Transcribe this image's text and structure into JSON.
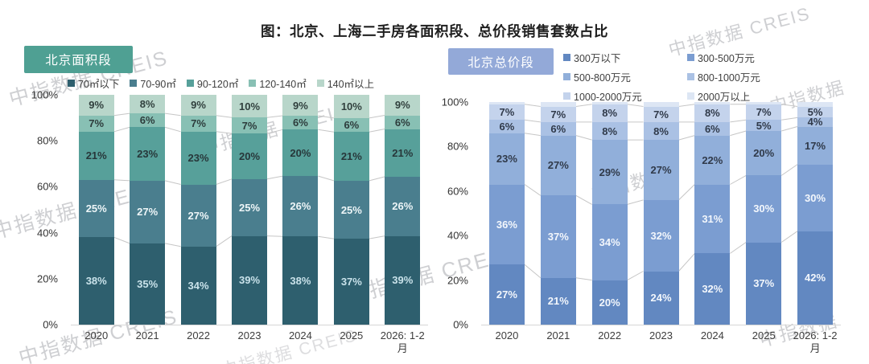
{
  "title": "图：北京、上海二手房各面积段、总价段销售套数占比",
  "watermark_full": "中指数据 CREIS",
  "watermark_short": "中指数据",
  "y_ticks": [
    "100%",
    "80%",
    "60%",
    "40%",
    "20%",
    "0%"
  ],
  "chart_data": [
    {
      "type": "bar",
      "subtype": "stacked-percent-column",
      "badge": "北京面积段",
      "badge_color": "#4fa093",
      "ylabel": "",
      "ylim": [
        0,
        100
      ],
      "grid": false,
      "legend_position": "top",
      "categories": [
        "2020",
        "2021",
        "2022",
        "2023",
        "2024",
        "2025",
        "2026: 1-2\n月"
      ],
      "series": [
        {
          "name": "70㎡以下",
          "color": "#2e5f6e",
          "label_color": "#c9e2ea",
          "labeled": true,
          "values": [
            38,
            35,
            34,
            39,
            38,
            37,
            39
          ]
        },
        {
          "name": "70-90㎡",
          "color": "#4a7e8e",
          "label_color": "#eef6f8",
          "labeled": true,
          "values": [
            25,
            27,
            27,
            25,
            26,
            25,
            26
          ]
        },
        {
          "name": "90-120㎡",
          "color": "#57a09a",
          "label_color": "#27373a",
          "labeled": true,
          "values": [
            21,
            23,
            23,
            20,
            20,
            21,
            21
          ]
        },
        {
          "name": "120-140㎡",
          "color": "#88c0b4",
          "label_color": "#2d3c3c",
          "labeled": true,
          "values": [
            7,
            6,
            7,
            7,
            6,
            6,
            6
          ]
        },
        {
          "name": "140㎡以上",
          "color": "#b8d6ca",
          "label_color": "#31403e",
          "labeled": true,
          "values": [
            9,
            8,
            9,
            10,
            9,
            10,
            9
          ]
        }
      ]
    },
    {
      "type": "bar",
      "subtype": "stacked-percent-column",
      "badge": "北京总价段",
      "badge_color": "#93a9d8",
      "ylabel": "",
      "ylim": [
        0,
        100
      ],
      "grid": false,
      "legend_position": "top",
      "categories": [
        "2020",
        "2021",
        "2022",
        "2023",
        "2024",
        "2025",
        "2026: 1-2\n月"
      ],
      "series": [
        {
          "name": "300万以下",
          "color": "#6288c1",
          "label_color": "#f3f7fc",
          "labeled": true,
          "values": [
            27,
            21,
            20,
            24,
            32,
            37,
            42
          ]
        },
        {
          "name": "300-500万元",
          "color": "#7b9dd1",
          "label_color": "#f3f7fc",
          "labeled": true,
          "values": [
            36,
            37,
            34,
            32,
            31,
            30,
            30
          ]
        },
        {
          "name": "500-800万元",
          "color": "#91afda",
          "label_color": "#303a4a",
          "labeled": true,
          "values": [
            23,
            27,
            29,
            27,
            22,
            20,
            17
          ]
        },
        {
          "name": "800-1000万元",
          "color": "#aac1e4",
          "label_color": "#303a4a",
          "labeled": true,
          "values": [
            6,
            6,
            8,
            8,
            6,
            5,
            4
          ]
        },
        {
          "name": "1000-2000万元",
          "color": "#c4d3ec",
          "label_color": "#303a4a",
          "labeled": true,
          "values": [
            7,
            7,
            8,
            7,
            8,
            7,
            5
          ]
        },
        {
          "name": "2000万以上",
          "color": "#dde6f4",
          "label_color": "#303a4a",
          "labeled": false,
          "values": [
            1,
            2,
            1,
            2,
            1,
            1,
            2
          ]
        }
      ]
    }
  ]
}
